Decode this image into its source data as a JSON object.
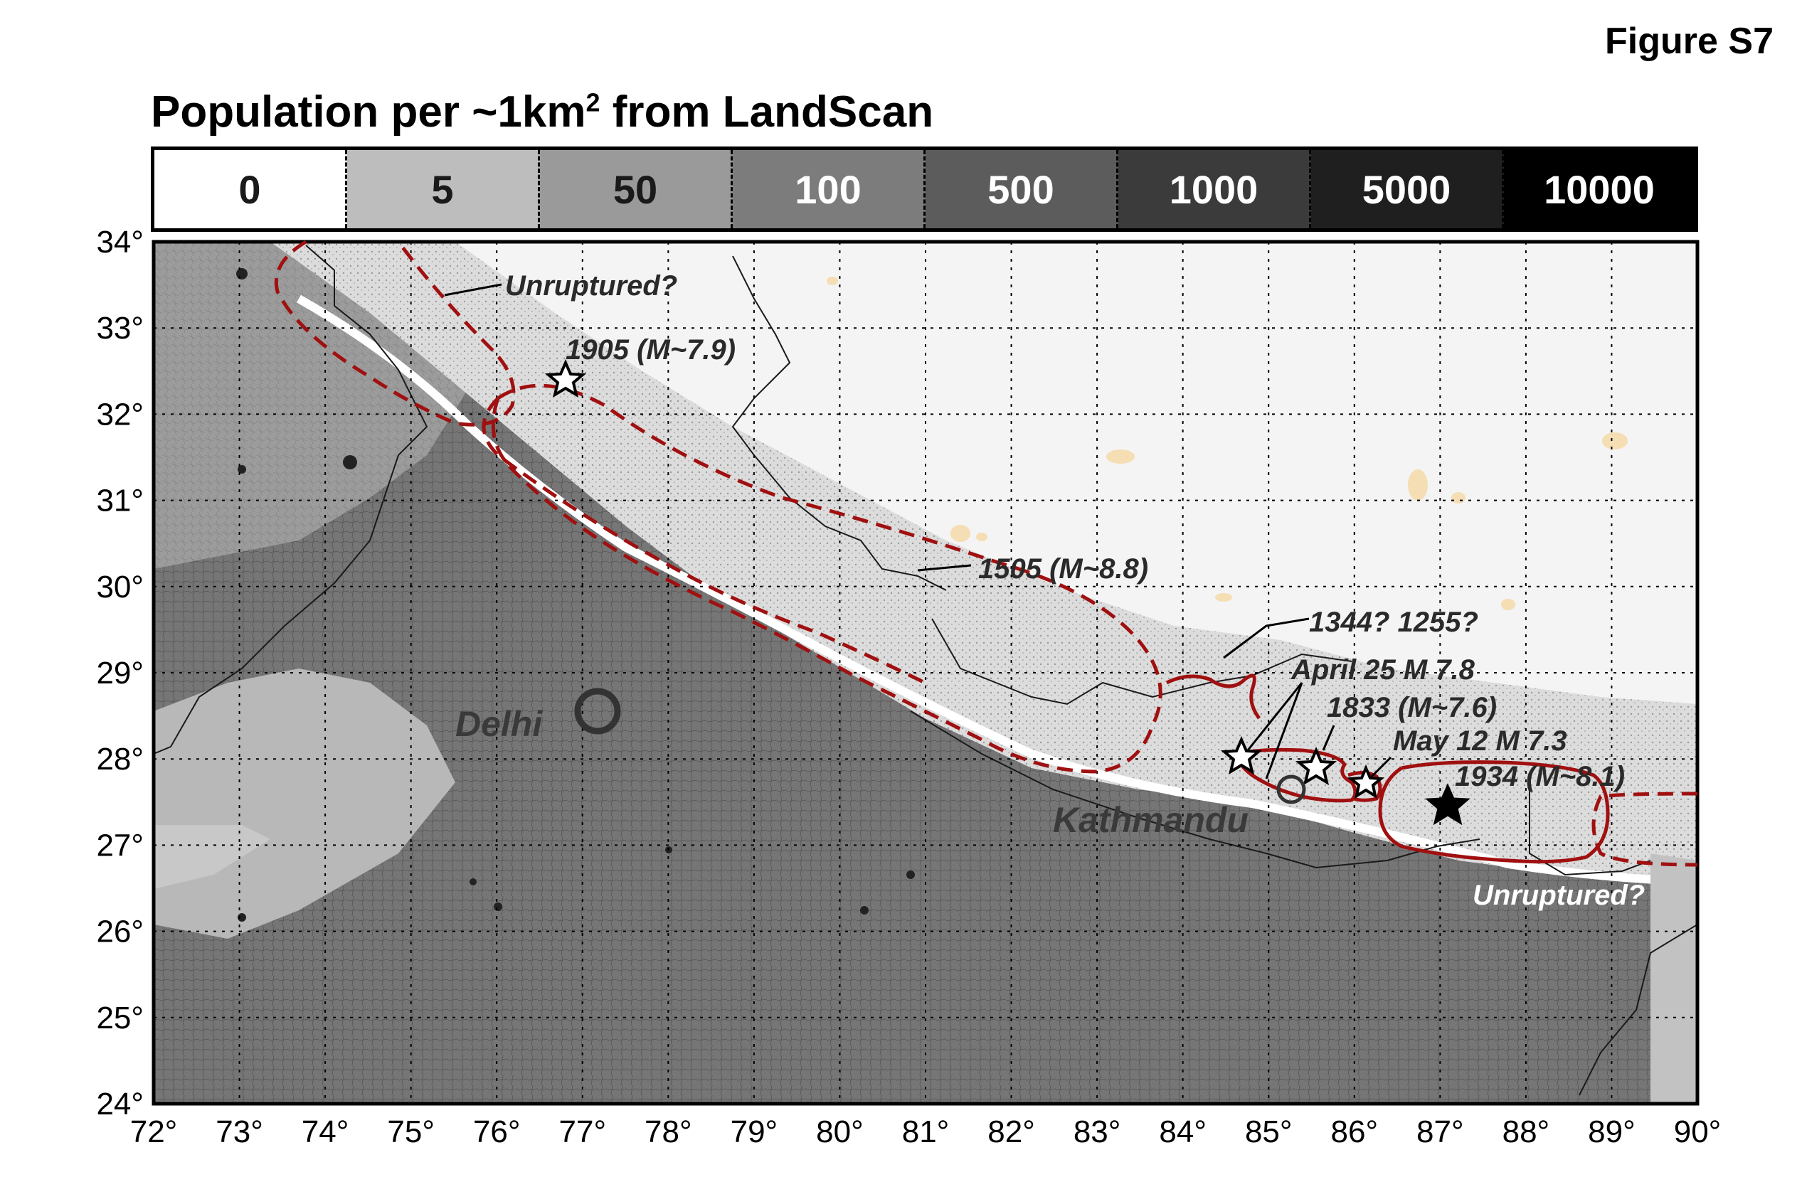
{
  "figure_label": "Figure S7",
  "legend": {
    "title": "Population per ~1km",
    "title_sup": "2",
    "title_suffix": " from LandScan",
    "classes": [
      {
        "label": "0",
        "color": "#ffffff",
        "text_color": "#1a1a1a"
      },
      {
        "label": "5",
        "color": "#bdbdbd",
        "text_color": "#1a1a1a"
      },
      {
        "label": "50",
        "color": "#9a9a9a",
        "text_color": "#1a1a1a"
      },
      {
        "label": "100",
        "color": "#7c7c7c",
        "text_color": "#ffffff"
      },
      {
        "label": "500",
        "color": "#5c5c5c",
        "text_color": "#ffffff"
      },
      {
        "label": "1000",
        "color": "#3b3b3b",
        "text_color": "#ffffff"
      },
      {
        "label": "5000",
        "color": "#1f1f1f",
        "text_color": "#ffffff"
      },
      {
        "label": "10000",
        "color": "#000000",
        "text_color": "#ffffff"
      }
    ]
  },
  "map": {
    "lon_range": [
      72,
      90
    ],
    "lat_range": [
      24,
      34
    ],
    "x_ticks": [
      "72°",
      "73°",
      "74°",
      "75°",
      "76°",
      "77°",
      "78°",
      "79°",
      "80°",
      "81°",
      "82°",
      "83°",
      "84°",
      "85°",
      "86°",
      "87°",
      "88°",
      "89°",
      "90°"
    ],
    "y_ticks": [
      "34°",
      "33°",
      "32°",
      "31°",
      "30°",
      "29°",
      "28°",
      "27°",
      "26°",
      "25°",
      "24°"
    ],
    "grid": "dotted",
    "colors": {
      "rupture": "#a01010",
      "plains": "#6e6e6e",
      "hills": "#a8a8a8",
      "mountains": "#f2f2f2",
      "lakes": "#f5deb3"
    }
  },
  "annotations": {
    "unruptured_west": "Unruptured?",
    "eq_1905": "1905 (M~7.9)",
    "eq_1505": "1505 (M~8.8)",
    "eq_1344": "1344? 1255?",
    "april25": "April 25 M 7.8",
    "eq_1833": "1833 (M~7.6)",
    "may12": "May 12 M 7.3",
    "eq_1934": "1934 (M~8.1)",
    "unruptured_east": "Unruptured?"
  },
  "cities": {
    "delhi": "Delhi",
    "kathmandu": "Kathmandu"
  }
}
